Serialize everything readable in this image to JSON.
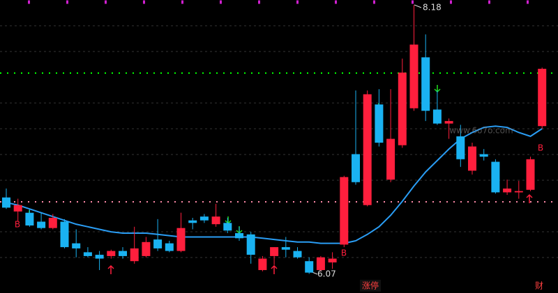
{
  "chart_data": {
    "type": "candlestick",
    "open": [
      6.67,
      6.56,
      6.55,
      6.48,
      6.43,
      6.48,
      6.31,
      6.24,
      6.22,
      6.21,
      6.25,
      6.17,
      6.21,
      6.34,
      6.31,
      6.25,
      6.49,
      6.52,
      6.46,
      6.47,
      6.39,
      6.38,
      6.1,
      6.21,
      6.28,
      6.25,
      6.17,
      6.1,
      6.16,
      6.3,
      7.01,
      6.61,
      7.4,
      6.81,
      7.08,
      7.37,
      7.77,
      7.36,
      7.25,
      7.15,
      6.88,
      7.01,
      6.95,
      6.71,
      6.71,
      6.73,
      7.23
    ],
    "high": [
      6.74,
      6.66,
      6.58,
      6.55,
      6.54,
      6.5,
      6.42,
      6.28,
      6.25,
      6.26,
      6.28,
      6.44,
      6.36,
      6.5,
      6.33,
      6.55,
      6.51,
      6.54,
      6.62,
      6.51,
      6.44,
      6.4,
      6.21,
      6.28,
      6.36,
      6.28,
      6.2,
      6.21,
      6.24,
      6.84,
      7.51,
      7.51,
      7.52,
      7.52,
      7.76,
      8.18,
      7.95,
      7.51,
      7.29,
      7.24,
      7.1,
      7.05,
      6.97,
      6.81,
      6.8,
      6.99,
      7.69
    ],
    "low": [
      6.58,
      6.48,
      6.44,
      6.42,
      6.42,
      6.27,
      6.2,
      6.2,
      6.1,
      6.19,
      6.19,
      6.15,
      6.2,
      6.25,
      6.24,
      6.24,
      6.42,
      6.47,
      6.44,
      6.39,
      6.33,
      6.15,
      6.09,
      6.14,
      6.2,
      6.19,
      6.07,
      6.09,
      6.11,
      6.28,
      6.77,
      6.6,
      7.07,
      6.79,
      7.06,
      7.35,
      7.27,
      7.24,
      7.13,
      6.91,
      6.85,
      6.96,
      6.7,
      6.69,
      6.66,
      6.72,
      7.21
    ],
    "close": [
      6.59,
      6.61,
      6.45,
      6.43,
      6.51,
      6.28,
      6.27,
      6.21,
      6.19,
      6.25,
      6.21,
      6.27,
      6.32,
      6.27,
      6.25,
      6.43,
      6.47,
      6.49,
      6.52,
      6.41,
      6.35,
      6.22,
      6.19,
      6.28,
      6.26,
      6.2,
      6.08,
      6.2,
      6.19,
      6.83,
      6.79,
      7.48,
      7.1,
      7.13,
      7.65,
      7.87,
      7.35,
      7.25,
      7.27,
      6.97,
      7.07,
      6.99,
      6.71,
      6.74,
      6.72,
      6.97,
      7.68
    ],
    "up_color": "#ff1f3d",
    "down_color": "#1ab2f2",
    "ma": {
      "color": "#2a9df4",
      "values": [
        6.63,
        6.61,
        6.58,
        6.55,
        6.52,
        6.49,
        6.46,
        6.44,
        6.42,
        6.4,
        6.39,
        6.39,
        6.39,
        6.38,
        6.37,
        6.36,
        6.36,
        6.36,
        6.36,
        6.36,
        6.36,
        6.36,
        6.35,
        6.34,
        6.33,
        6.32,
        6.32,
        6.31,
        6.31,
        6.31,
        6.33,
        6.38,
        6.44,
        6.53,
        6.64,
        6.76,
        6.87,
        6.96,
        7.05,
        7.13,
        7.18,
        7.22,
        7.23,
        7.22,
        7.18,
        7.15,
        7.21
      ]
    },
    "ylim": [
      5.92,
      8.22
    ],
    "annotations": [
      "8.18",
      "6.07",
      "B",
      "B",
      "B"
    ],
    "tags": [
      "涨停",
      "财"
    ],
    "watermark": "www.6o7o.com"
  }
}
